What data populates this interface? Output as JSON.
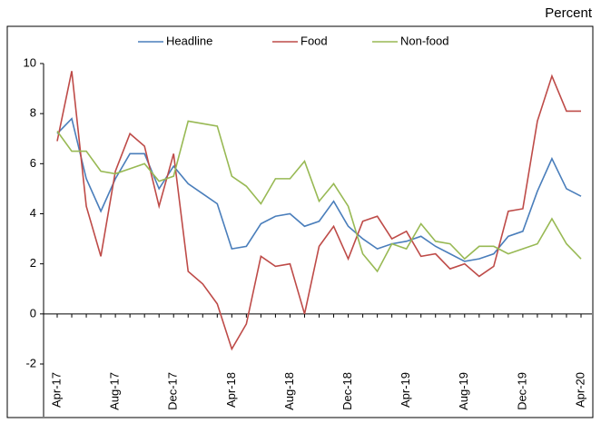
{
  "chart_data": {
    "type": "line",
    "y_label": "Percent",
    "categories": [
      "Apr-17",
      null,
      null,
      null,
      "Aug-17",
      null,
      null,
      null,
      "Dec-17",
      null,
      null,
      null,
      "Apr-18",
      null,
      null,
      null,
      "Aug-18",
      null,
      null,
      null,
      "Dec-18",
      null,
      null,
      null,
      "Apr-19",
      null,
      null,
      null,
      "Aug-19",
      null,
      null,
      null,
      "Dec-19",
      null,
      null,
      null,
      "Apr-20"
    ],
    "series": [
      {
        "name": "Headline",
        "color": "#4a7ebb",
        "values": [
          7.2,
          7.8,
          5.4,
          4.1,
          5.4,
          6.4,
          6.4,
          5.0,
          5.9,
          5.2,
          4.8,
          4.4,
          2.6,
          2.7,
          3.6,
          3.9,
          4.0,
          3.5,
          3.7,
          4.5,
          3.5,
          3.0,
          2.6,
          2.8,
          2.9,
          3.1,
          2.7,
          2.4,
          2.1,
          2.2,
          2.4,
          3.1,
          3.3,
          4.9,
          6.2,
          5.0,
          4.7
        ]
      },
      {
        "name": "Food",
        "color": "#be4b48",
        "values": [
          6.9,
          9.7,
          4.3,
          2.3,
          5.7,
          7.2,
          6.7,
          4.3,
          6.4,
          1.7,
          1.2,
          0.4,
          -1.4,
          -0.4,
          2.3,
          1.9,
          2.0,
          0.0,
          2.7,
          3.5,
          2.2,
          3.7,
          3.9,
          3.0,
          3.3,
          2.3,
          2.4,
          1.8,
          2.0,
          1.5,
          1.9,
          4.1,
          4.2,
          7.7,
          9.5,
          8.1,
          8.1
        ]
      },
      {
        "name": "Non-food",
        "color": "#98b954",
        "values": [
          7.3,
          6.5,
          6.5,
          5.7,
          5.6,
          5.8,
          6.0,
          5.3,
          5.5,
          7.7,
          7.6,
          7.5,
          5.5,
          5.1,
          4.4,
          5.4,
          5.4,
          6.1,
          4.5,
          5.2,
          4.3,
          2.4,
          1.7,
          2.8,
          2.6,
          3.6,
          2.9,
          2.8,
          2.2,
          2.7,
          2.7,
          2.4,
          2.6,
          2.8,
          3.8,
          2.8,
          2.2
        ]
      }
    ],
    "ylim": [
      -2,
      10
    ],
    "yticks": [
      -2,
      0,
      2,
      4,
      6,
      8,
      10
    ],
    "grid": false,
    "legend": "top"
  }
}
